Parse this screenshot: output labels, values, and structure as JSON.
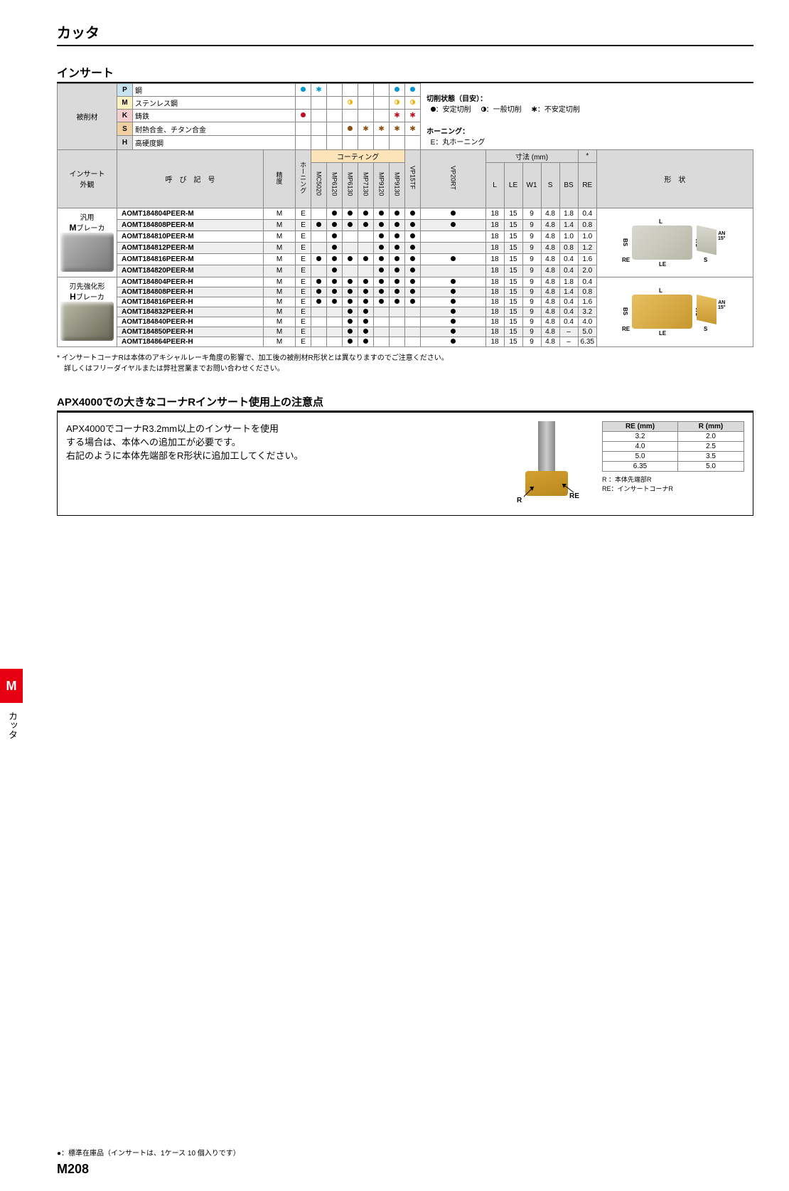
{
  "page": {
    "title": "カッタ",
    "subtitle": "インサート",
    "side_tab": "M",
    "side_label": "カッタ",
    "page_number": "M208",
    "footnote": "●：標準在庫品（インサートは、1ケース 10 個入りです）"
  },
  "materials": {
    "header": "被削材",
    "rows": [
      {
        "code": "P",
        "label": "鋼",
        "bg": "#c8e3f0"
      },
      {
        "code": "M",
        "label": "ステンレス鋼",
        "bg": "#fdf2c0"
      },
      {
        "code": "K",
        "label": "鋳鉄",
        "bg": "#f5cfd0"
      },
      {
        "code": "S",
        "label": "耐熱合金、チタン合金",
        "bg": "#f0d0a0"
      },
      {
        "code": "H",
        "label": "高硬度鋼",
        "bg": "#d8d8d8"
      }
    ]
  },
  "cutting_legend": {
    "title": "切削状態（目安）：",
    "items": [
      {
        "sym": "●",
        "label": "：安定切削"
      },
      {
        "sym": "◐",
        "label": "：一般切削"
      },
      {
        "sym": "✱",
        "label": "：不安定切削"
      }
    ],
    "honing_title": "ホーニング：",
    "honing_item": "E：丸ホーニング"
  },
  "material_marks": {
    "P": {
      "MC5020": "●",
      "MP6120": "✱",
      "VP15TF": "●",
      "VP20RT": "●"
    },
    "M": {
      "MP7130": "◐",
      "VP15TF": "◐",
      "VP20RT": "◐"
    },
    "K": {
      "MC5020": "●",
      "VP15TF": "✱",
      "VP20RT": "✱"
    },
    "S": {
      "MP7130": "●",
      "MP9120": "✱",
      "MP9130": "✱",
      "VP15TF": "✱",
      "VP20RT": "✱"
    },
    "H": {}
  },
  "material_colors": {
    "P": "#0097d6",
    "M": "#f0b000",
    "K": "#c01020",
    "S": "#8a5010",
    "H": "#808080"
  },
  "table_headers": {
    "appearance": "インサート\n外観",
    "designation": "呼　び　記　号",
    "precision": "精度",
    "honing": "ホーニング",
    "coating": "コーティング",
    "dims": "寸法 (mm)",
    "shape": "形　状",
    "star": "*",
    "grades": [
      "MC5020",
      "MP6120",
      "MP6130",
      "MP7130",
      "MP9120",
      "MP9130",
      "VP15TF",
      "VP20RT"
    ],
    "dims_cols": [
      "L",
      "LE",
      "W1",
      "S",
      "BS",
      "RE"
    ]
  },
  "groups": [
    {
      "name": "汎用",
      "name2": "Mブレーカ",
      "shape_color": "gray",
      "rows": [
        {
          "d": "AOMT184804PEER-M",
          "p": "M",
          "h": "E",
          "g": [
            0,
            1,
            1,
            1,
            1,
            1,
            1,
            1
          ],
          "v": [
            "18",
            "15",
            "9",
            "4.8",
            "1.8",
            "0.4"
          ],
          "alt": 0
        },
        {
          "d": "AOMT184808PEER-M",
          "p": "M",
          "h": "E",
          "g": [
            1,
            1,
            1,
            1,
            1,
            1,
            1,
            1
          ],
          "v": [
            "18",
            "15",
            "9",
            "4.8",
            "1.4",
            "0.8"
          ],
          "alt": 1
        },
        {
          "d": "AOMT184810PEER-M",
          "p": "M",
          "h": "E",
          "g": [
            0,
            1,
            0,
            0,
            1,
            1,
            1,
            0
          ],
          "v": [
            "18",
            "15",
            "9",
            "4.8",
            "1.0",
            "1.0"
          ],
          "alt": 0
        },
        {
          "d": "AOMT184812PEER-M",
          "p": "M",
          "h": "E",
          "g": [
            0,
            1,
            0,
            0,
            1,
            1,
            1,
            0
          ],
          "v": [
            "18",
            "15",
            "9",
            "4.8",
            "0.8",
            "1.2"
          ],
          "alt": 1
        },
        {
          "d": "AOMT184816PEER-M",
          "p": "M",
          "h": "E",
          "g": [
            1,
            1,
            1,
            1,
            1,
            1,
            1,
            1
          ],
          "v": [
            "18",
            "15",
            "9",
            "4.8",
            "0.4",
            "1.6"
          ],
          "alt": 0
        },
        {
          "d": "AOMT184820PEER-M",
          "p": "M",
          "h": "E",
          "g": [
            0,
            1,
            0,
            0,
            1,
            1,
            1,
            0
          ],
          "v": [
            "18",
            "15",
            "9",
            "4.8",
            "0.4",
            "2.0"
          ],
          "alt": 1
        }
      ]
    },
    {
      "name": "刃先強化形",
      "name2": "Hブレーカ",
      "shape_color": "gold",
      "rows": [
        {
          "d": "AOMT184804PEER-H",
          "p": "M",
          "h": "E",
          "g": [
            1,
            1,
            1,
            1,
            1,
            1,
            1,
            1
          ],
          "v": [
            "18",
            "15",
            "9",
            "4.8",
            "1.8",
            "0.4"
          ],
          "alt": 0
        },
        {
          "d": "AOMT184808PEER-H",
          "p": "M",
          "h": "E",
          "g": [
            1,
            1,
            1,
            1,
            1,
            1,
            1,
            1
          ],
          "v": [
            "18",
            "15",
            "9",
            "4.8",
            "1.4",
            "0.8"
          ],
          "alt": 1
        },
        {
          "d": "AOMT184816PEER-H",
          "p": "M",
          "h": "E",
          "g": [
            1,
            1,
            1,
            1,
            1,
            1,
            1,
            1
          ],
          "v": [
            "18",
            "15",
            "9",
            "4.8",
            "0.4",
            "1.6"
          ],
          "alt": 0
        },
        {
          "d": "AOMT184832PEER-H",
          "p": "M",
          "h": "E",
          "g": [
            0,
            0,
            1,
            1,
            0,
            0,
            0,
            1
          ],
          "v": [
            "18",
            "15",
            "9",
            "4.8",
            "0.4",
            "3.2"
          ],
          "alt": 1
        },
        {
          "d": "AOMT184840PEER-H",
          "p": "M",
          "h": "E",
          "g": [
            0,
            0,
            1,
            1,
            0,
            0,
            0,
            1
          ],
          "v": [
            "18",
            "15",
            "9",
            "4.8",
            "0.4",
            "4.0"
          ],
          "alt": 0
        },
        {
          "d": "AOMT184850PEER-H",
          "p": "M",
          "h": "E",
          "g": [
            0,
            0,
            1,
            1,
            0,
            0,
            0,
            1
          ],
          "v": [
            "18",
            "15",
            "9",
            "4.8",
            "–",
            "5.0"
          ],
          "alt": 1
        },
        {
          "d": "AOMT184864PEER-H",
          "p": "M",
          "h": "E",
          "g": [
            0,
            0,
            1,
            1,
            0,
            0,
            0,
            1
          ],
          "v": [
            "18",
            "15",
            "9",
            "4.8",
            "–",
            "6.35"
          ],
          "alt": 0
        }
      ]
    }
  ],
  "table_note": "* インサートコーナRは本体のアキシャルレーキ角度の影響で、加工後の被削材R形状とは異なりますのでご注意ください。\n　詳しくはフリーダイヤルまたは弊社営業までお問い合わせください。",
  "diagram_labels": {
    "L": "L",
    "LE": "LE",
    "W1": "W1",
    "S": "S",
    "BS": "BS",
    "RE": "RE",
    "AN": "AN\n15°"
  },
  "section2": {
    "title": "APX4000での大きなコーナRインサート使用上の注意点",
    "text": "APX4000でコーナR3.2mm以上のインサートを使用\nする場合は、本体への追加工が必要です。\n右記のように本体先端部をR形状に追加工してください。",
    "r_label": "R",
    "re_label": "RE",
    "r_note1": "R  ：本体先端部R",
    "r_note2": "RE：インサートコーナR",
    "table": {
      "hdr": [
        "RE (mm)",
        "R (mm)"
      ],
      "rows": [
        [
          "3.2",
          "2.0"
        ],
        [
          "4.0",
          "2.5"
        ],
        [
          "5.0",
          "3.5"
        ],
        [
          "6.35",
          "5.0"
        ]
      ]
    }
  }
}
